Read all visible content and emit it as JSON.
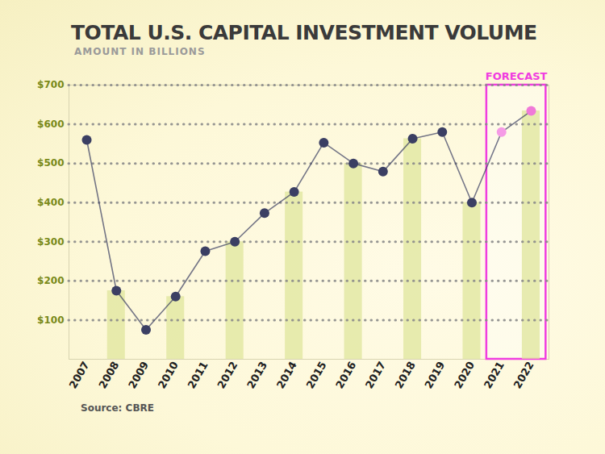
{
  "chart_data": {
    "type": "line",
    "title": "TOTAL U.S. CAPITAL INVESTMENT VOLUME",
    "subtitle": "AMOUNT IN BILLIONS",
    "caption": "Source: CBRE",
    "categories": [
      "2007",
      "2008",
      "2009",
      "2010",
      "2011",
      "2012",
      "2013",
      "2014",
      "2015",
      "2016",
      "2017",
      "2018",
      "2019",
      "2020",
      "2021",
      "2022"
    ],
    "series": [
      {
        "type": "bar",
        "color": "#dfe59c",
        "values": [
          null,
          175,
          null,
          160,
          null,
          300,
          null,
          427,
          null,
          500,
          null,
          563,
          null,
          400,
          null,
          634
        ]
      },
      {
        "type": "line",
        "color": "#3b3f63",
        "marker": "circle",
        "colors": [
          "#3b3f63",
          "#3b3f63",
          "#3b3f63",
          "#3b3f63",
          "#3b3f63",
          "#3b3f63",
          "#3b3f63",
          "#3b3f63",
          "#3b3f63",
          "#3b3f63",
          "#3b3f63",
          "#3b3f63",
          "#3b3f63",
          "#3b3f63",
          "#f59be6",
          "#f07ad8"
        ],
        "values": [
          560,
          175,
          75,
          160,
          276,
          300,
          373,
          427,
          553,
          500,
          479,
          563,
          580,
          400,
          580,
          634
        ]
      }
    ],
    "ylim": [
      0,
      700
    ],
    "yticks": [
      {
        "value": 100,
        "label": "$100"
      },
      {
        "value": 200,
        "label": "$200"
      },
      {
        "value": 300,
        "label": "$300"
      },
      {
        "value": 400,
        "label": "$400"
      },
      {
        "value": 500,
        "label": "$500"
      },
      {
        "value": 600,
        "label": "$600"
      },
      {
        "value": 700,
        "label": "$700"
      }
    ],
    "grid": true,
    "annotations": [
      {
        "text": "FORECAST",
        "categories": [
          "2021",
          "2022"
        ],
        "color": "#f03de0"
      }
    ]
  }
}
